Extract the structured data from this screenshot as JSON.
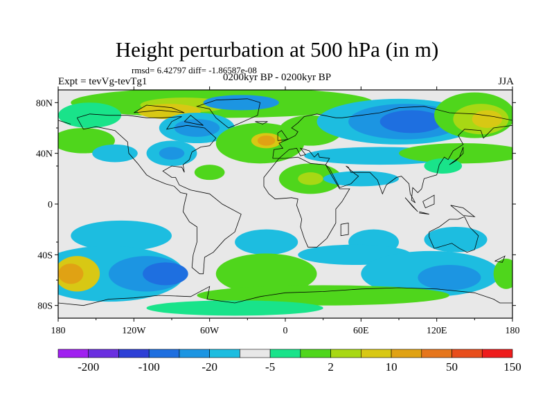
{
  "title": "Height perturbation at 500 hPa (in m)",
  "stats_line": "rmsd= 6.42797 diff= -1.86587e-08",
  "left_label": "Expt = tevVg-tevTg1",
  "center_label": "0200kyr BP - 0200kyr BP",
  "right_label": "JJA",
  "lat_ticks": [
    "80N",
    "40N",
    "0",
    "40S",
    "80S"
  ],
  "lon_ticks": [
    "180",
    "120W",
    "60W",
    "0",
    "60E",
    "120E",
    "180"
  ],
  "colors": {
    "c0": "#a020f0",
    "c1": "#6a2fe0",
    "c2": "#2d3fd6",
    "c3": "#1e6fe0",
    "c4": "#1c95e2",
    "c5": "#1dbde0",
    "c6": "#e8e8e8",
    "c7": "#19e38a",
    "c8": "#4fd61c",
    "c9": "#a8d814",
    "c10": "#d8c814",
    "c11": "#e0a214",
    "c12": "#e6761c",
    "c13": "#e84e1c",
    "c14": "#ee1c1c"
  },
  "colorbar": {
    "labels": [
      {
        "text": "-200",
        "boundary": 1
      },
      {
        "text": "-100",
        "boundary": 3
      },
      {
        "text": "-20",
        "boundary": 5
      },
      {
        "text": "-5",
        "boundary": 7
      },
      {
        "text": "2",
        "boundary": 9
      },
      {
        "text": "10",
        "boundary": 11
      },
      {
        "text": "50",
        "boundary": 13
      },
      {
        "text": "150",
        "boundary": 15
      }
    ]
  },
  "field_blobs": [
    {
      "lon": -60,
      "lat": 30,
      "rlon": 200,
      "rlat": 45,
      "level": 6
    },
    {
      "lon": 60,
      "lat": 10,
      "rlon": 200,
      "rlat": 35,
      "level": 6
    },
    {
      "lon": -50,
      "lat": 80,
      "rlon": 120,
      "rlat": 12,
      "level": 8
    },
    {
      "lon": -80,
      "lat": 78,
      "rlon": 35,
      "rlat": 6,
      "level": 9
    },
    {
      "lon": -92,
      "lat": 73,
      "rlon": 25,
      "rlat": 6,
      "level": 10
    },
    {
      "lon": -155,
      "lat": 70,
      "rlon": 25,
      "rlat": 10,
      "level": 7
    },
    {
      "lon": -160,
      "lat": 50,
      "rlon": 25,
      "rlat": 10,
      "level": 8
    },
    {
      "lon": -70,
      "lat": 60,
      "rlon": 30,
      "rlat": 12,
      "level": 5
    },
    {
      "lon": -70,
      "lat": 60,
      "rlon": 18,
      "rlat": 7,
      "level": 4
    },
    {
      "lon": -90,
      "lat": 40,
      "rlon": 20,
      "rlat": 10,
      "level": 5
    },
    {
      "lon": -90,
      "lat": 40,
      "rlon": 10,
      "rlat": 5,
      "level": 4
    },
    {
      "lon": -135,
      "lat": 40,
      "rlon": 18,
      "rlat": 7,
      "level": 5
    },
    {
      "lon": -35,
      "lat": 80,
      "rlon": 30,
      "rlat": 6,
      "level": 4
    },
    {
      "lon": -20,
      "lat": 48,
      "rlon": 35,
      "rlat": 16,
      "level": 8
    },
    {
      "lon": -15,
      "lat": 50,
      "rlon": 12,
      "rlat": 6,
      "level": 10
    },
    {
      "lon": -15,
      "lat": 50,
      "rlon": 7,
      "rlat": 4,
      "level": 11
    },
    {
      "lon": 20,
      "lat": 20,
      "rlon": 25,
      "rlat": 12,
      "level": 8
    },
    {
      "lon": 20,
      "lat": 20,
      "rlon": 10,
      "rlat": 5,
      "level": 9
    },
    {
      "lon": 20,
      "lat": 58,
      "rlon": 25,
      "rlat": 12,
      "level": 8
    },
    {
      "lon": -60,
      "lat": 25,
      "rlon": 12,
      "rlat": 6,
      "level": 8
    },
    {
      "lon": 90,
      "lat": 65,
      "rlon": 65,
      "rlat": 18,
      "level": 5
    },
    {
      "lon": 95,
      "lat": 65,
      "rlon": 45,
      "rlat": 14,
      "level": 4
    },
    {
      "lon": 100,
      "lat": 65,
      "rlon": 25,
      "rlat": 9,
      "level": 3
    },
    {
      "lon": 75,
      "lat": 38,
      "rlon": 60,
      "rlat": 7,
      "level": 5
    },
    {
      "lon": 60,
      "lat": 20,
      "rlon": 30,
      "rlat": 6,
      "level": 5
    },
    {
      "lon": 150,
      "lat": 70,
      "rlon": 32,
      "rlat": 18,
      "level": 8
    },
    {
      "lon": 155,
      "lat": 67,
      "rlon": 22,
      "rlat": 12,
      "level": 9
    },
    {
      "lon": 160,
      "lat": 67,
      "rlon": 12,
      "rlat": 7,
      "level": 10
    },
    {
      "lon": 140,
      "lat": 40,
      "rlon": 50,
      "rlat": 8,
      "level": 8
    },
    {
      "lon": 125,
      "lat": 30,
      "rlon": 15,
      "rlat": 6,
      "level": 7
    },
    {
      "lon": -130,
      "lat": -25,
      "rlon": 40,
      "rlat": 12,
      "level": 5
    },
    {
      "lon": -15,
      "lat": -30,
      "rlon": 25,
      "rlat": 10,
      "level": 5
    },
    {
      "lon": 70,
      "lat": -30,
      "rlon": 20,
      "rlat": 10,
      "level": 5
    },
    {
      "lon": 135,
      "lat": -28,
      "rlon": 25,
      "rlat": 10,
      "level": 5
    },
    {
      "lon": -140,
      "lat": -55,
      "rlon": 60,
      "rlat": 22,
      "level": 5
    },
    {
      "lon": -110,
      "lat": -55,
      "rlon": 30,
      "rlat": 14,
      "level": 4
    },
    {
      "lon": -95,
      "lat": -55,
      "rlon": 18,
      "rlat": 9,
      "level": 3
    },
    {
      "lon": -15,
      "lat": -55,
      "rlon": 40,
      "rlat": 16,
      "level": 8
    },
    {
      "lon": 55,
      "lat": -40,
      "rlon": 45,
      "rlat": 8,
      "level": 5
    },
    {
      "lon": 115,
      "lat": -55,
      "rlon": 55,
      "rlat": 18,
      "level": 5
    },
    {
      "lon": 130,
      "lat": -58,
      "rlon": 25,
      "rlat": 10,
      "level": 4
    },
    {
      "lon": -165,
      "lat": -55,
      "rlon": 18,
      "rlat": 14,
      "level": 10
    },
    {
      "lon": -170,
      "lat": -55,
      "rlon": 10,
      "rlat": 8,
      "level": 11
    },
    {
      "lon": 175,
      "lat": -55,
      "rlon": 10,
      "rlat": 12,
      "level": 8
    },
    {
      "lon": 30,
      "lat": -72,
      "rlon": 100,
      "rlat": 8,
      "level": 8
    },
    {
      "lon": -40,
      "lat": -82,
      "rlon": 70,
      "rlat": 6,
      "level": 7
    }
  ],
  "coastlines": [
    [
      [
        -165,
        68
      ],
      [
        -160,
        59
      ],
      [
        -150,
        61
      ],
      [
        -135,
        58
      ],
      [
        -125,
        49
      ],
      [
        -124,
        40
      ],
      [
        -117,
        32
      ],
      [
        -110,
        23
      ],
      [
        -105,
        20
      ],
      [
        -95,
        16
      ],
      [
        -88,
        14
      ],
      [
        -83,
        9
      ],
      [
        -78,
        8
      ],
      [
        -80,
        0
      ],
      [
        -81,
        -6
      ],
      [
        -76,
        -14
      ],
      [
        -70,
        -18
      ],
      [
        -70,
        -30
      ],
      [
        -73,
        -40
      ],
      [
        -74,
        -50
      ],
      [
        -68,
        -55
      ],
      [
        -65,
        -55
      ],
      [
        -64,
        -42
      ],
      [
        -57,
        -38
      ],
      [
        -48,
        -28
      ],
      [
        -40,
        -22
      ],
      [
        -35,
        -8
      ],
      [
        -50,
        0
      ],
      [
        -60,
        8
      ],
      [
        -75,
        11
      ],
      [
        -84,
        15
      ],
      [
        -87,
        21
      ],
      [
        -90,
        21
      ],
      [
        -97,
        26
      ],
      [
        -90,
        30
      ],
      [
        -82,
        29
      ],
      [
        -80,
        25
      ],
      [
        -81,
        31
      ],
      [
        -76,
        35
      ],
      [
        -74,
        41
      ],
      [
        -67,
        45
      ],
      [
        -60,
        46
      ],
      [
        -55,
        52
      ],
      [
        -64,
        60
      ],
      [
        -78,
        62
      ],
      [
        -94,
        59
      ],
      [
        -90,
        65
      ],
      [
        -82,
        69
      ],
      [
        -98,
        68
      ],
      [
        -110,
        68
      ],
      [
        -125,
        70
      ],
      [
        -140,
        70
      ],
      [
        -155,
        71
      ],
      [
        -165,
        68
      ]
    ],
    [
      [
        -55,
        82
      ],
      [
        -30,
        83
      ],
      [
        -20,
        80
      ],
      [
        -22,
        70
      ],
      [
        -40,
        62
      ],
      [
        -45,
        60
      ],
      [
        -55,
        68
      ],
      [
        -60,
        75
      ],
      [
        -70,
        77
      ],
      [
        -55,
        82
      ]
    ],
    [
      [
        -10,
        36
      ],
      [
        -9,
        43
      ],
      [
        -2,
        44
      ],
      [
        -5,
        48
      ],
      [
        2,
        51
      ],
      [
        8,
        54
      ],
      [
        10,
        57
      ],
      [
        5,
        60
      ],
      [
        10,
        64
      ],
      [
        15,
        69
      ],
      [
        25,
        71
      ],
      [
        40,
        68
      ],
      [
        45,
        68
      ],
      [
        60,
        70
      ],
      [
        75,
        72
      ],
      [
        90,
        76
      ],
      [
        110,
        77
      ],
      [
        130,
        72
      ],
      [
        150,
        71
      ],
      [
        165,
        69
      ],
      [
        180,
        66
      ]
    ],
    [
      [
        -180,
        66
      ],
      [
        -170,
        63
      ]
    ],
    [
      [
        180,
        62
      ],
      [
        165,
        60
      ],
      [
        157,
        52
      ],
      [
        155,
        58
      ],
      [
        142,
        59
      ],
      [
        137,
        54
      ],
      [
        141,
        47
      ],
      [
        133,
        42
      ],
      [
        129,
        35
      ],
      [
        126,
        37
      ],
      [
        122,
        31
      ],
      [
        120,
        23
      ],
      [
        110,
        20
      ],
      [
        108,
        12
      ],
      [
        105,
        9
      ],
      [
        101,
        13
      ],
      [
        100,
        3
      ],
      [
        103,
        1
      ],
      [
        99,
        8
      ],
      [
        98,
        16
      ],
      [
        92,
        22
      ],
      [
        88,
        21
      ],
      [
        80,
        15
      ],
      [
        77,
        8
      ],
      [
        73,
        19
      ],
      [
        67,
        25
      ],
      [
        57,
        25
      ],
      [
        52,
        25
      ],
      [
        50,
        29
      ],
      [
        48,
        30
      ],
      [
        55,
        24
      ],
      [
        58,
        22
      ],
      [
        52,
        16
      ],
      [
        43,
        13
      ],
      [
        35,
        28
      ],
      [
        32,
        31
      ],
      [
        35,
        36
      ],
      [
        27,
        37
      ],
      [
        26,
        40
      ],
      [
        23,
        37
      ],
      [
        19,
        42
      ],
      [
        12,
        44
      ],
      [
        16,
        39
      ],
      [
        12,
        38
      ],
      [
        9,
        44
      ],
      [
        3,
        43
      ],
      [
        -5,
        36
      ],
      [
        -10,
        36
      ]
    ],
    [
      [
        -5,
        36
      ],
      [
        -17,
        21
      ],
      [
        -17,
        14
      ],
      [
        -13,
        8
      ],
      [
        -8,
        4
      ],
      [
        5,
        5
      ],
      [
        10,
        4
      ],
      [
        9,
        -1
      ],
      [
        13,
        -12
      ],
      [
        12,
        -18
      ],
      [
        15,
        -27
      ],
      [
        18,
        -34
      ],
      [
        25,
        -34
      ],
      [
        33,
        -27
      ],
      [
        40,
        -15
      ],
      [
        40,
        -4
      ],
      [
        45,
        2
      ],
      [
        51,
        12
      ],
      [
        43,
        12
      ],
      [
        37,
        22
      ],
      [
        32,
        31
      ],
      [
        20,
        32
      ],
      [
        10,
        37
      ],
      [
        0,
        36
      ],
      [
        -5,
        36
      ]
    ],
    [
      [
        44,
        -16
      ],
      [
        50,
        -15
      ],
      [
        50,
        -24
      ],
      [
        44,
        -25
      ],
      [
        44,
        -16
      ]
    ],
    [
      [
        114,
        -22
      ],
      [
        122,
        -18
      ],
      [
        130,
        -12
      ],
      [
        137,
        -12
      ],
      [
        142,
        -10
      ],
      [
        146,
        -18
      ],
      [
        153,
        -25
      ],
      [
        150,
        -36
      ],
      [
        144,
        -38
      ],
      [
        138,
        -35
      ],
      [
        132,
        -31
      ],
      [
        118,
        -35
      ],
      [
        114,
        -26
      ],
      [
        114,
        -22
      ]
    ],
    [
      [
        95,
        5
      ],
      [
        105,
        -6
      ],
      [
        101,
        -2
      ],
      [
        95,
        5
      ]
    ],
    [
      [
        106,
        -6
      ],
      [
        114,
        -8
      ],
      [
        106,
        -7
      ]
    ],
    [
      [
        109,
        2
      ],
      [
        118,
        7
      ],
      [
        118,
        0
      ],
      [
        111,
        -3
      ],
      [
        109,
        2
      ]
    ],
    [
      [
        131,
        -1
      ],
      [
        141,
        -3
      ],
      [
        150,
        -10
      ],
      [
        141,
        -9
      ],
      [
        131,
        -1
      ]
    ],
    [
      [
        130,
        31
      ],
      [
        135,
        34
      ],
      [
        141,
        40
      ],
      [
        141,
        45
      ],
      [
        138,
        37
      ],
      [
        130,
        31
      ]
    ],
    [
      [
        -6,
        50
      ],
      [
        2,
        51
      ],
      [
        -3,
        58
      ],
      [
        -6,
        56
      ],
      [
        -6,
        50
      ]
    ],
    [
      [
        -24,
        65
      ],
      [
        -14,
        65
      ],
      [
        -18,
        63
      ],
      [
        -24,
        65
      ]
    ],
    [
      [
        166,
        -45
      ],
      [
        174,
        -41
      ],
      [
        172,
        -46
      ],
      [
        166,
        -45
      ]
    ],
    [
      [
        -180,
        -78
      ],
      [
        -160,
        -80
      ],
      [
        -140,
        -75
      ],
      [
        -120,
        -74
      ],
      [
        -100,
        -72
      ],
      [
        -75,
        -73
      ],
      [
        -60,
        -65
      ],
      [
        -62,
        -75
      ],
      [
        -40,
        -78
      ],
      [
        -20,
        -73
      ],
      [
        0,
        -70
      ],
      [
        30,
        -69
      ],
      [
        60,
        -67
      ],
      [
        90,
        -66
      ],
      [
        120,
        -67
      ],
      [
        150,
        -70
      ],
      [
        165,
        -75
      ],
      [
        170,
        -78
      ],
      [
        180,
        -78
      ]
    ],
    [
      [
        -120,
        72
      ],
      [
        -100,
        74
      ],
      [
        -80,
        72
      ],
      [
        -90,
        76
      ],
      [
        -110,
        78
      ],
      [
        -120,
        72
      ]
    ],
    [
      [
        -80,
        65
      ],
      [
        -65,
        62
      ],
      [
        -75,
        70
      ],
      [
        -80,
        65
      ]
    ]
  ]
}
